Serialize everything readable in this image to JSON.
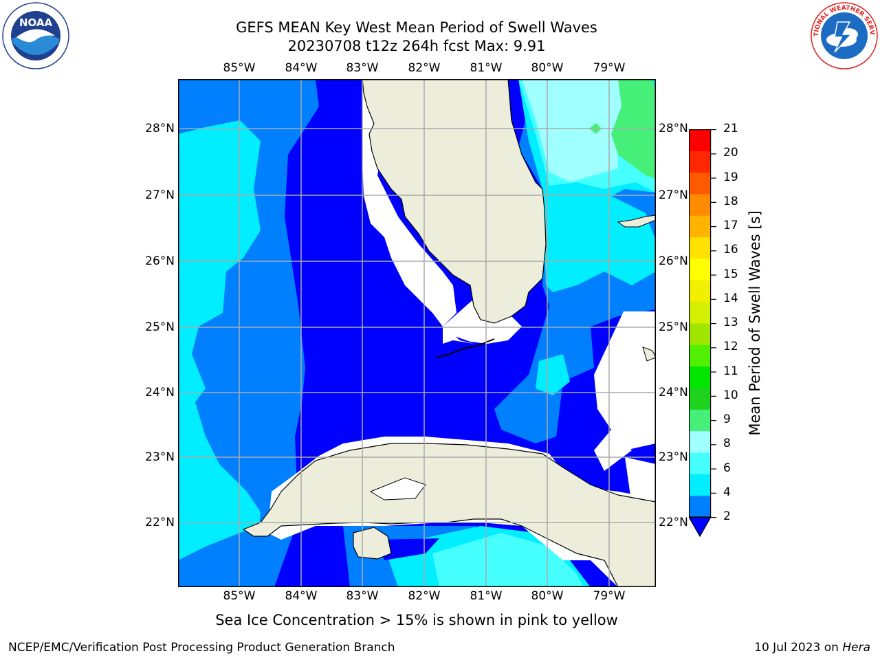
{
  "title": {
    "line1": "GEFS MEAN Key West Mean Period of Swell Waves",
    "line2": "20230708 t12z 264h fcst   Max: 9.91"
  },
  "logos": {
    "left": {
      "name": "noaa-logo",
      "text": "NOAA",
      "colors": [
        "#1f3f8f",
        "#2a8ad6",
        "#ffffff"
      ]
    },
    "right": {
      "name": "national-weather-service-logo",
      "text": "NATIONAL WEATHER SERVICE",
      "colors": [
        "#e0201e",
        "#1c6cc4",
        "#ffffff"
      ]
    }
  },
  "axes": {
    "longitude_ticks": [
      "85°W",
      "84°W",
      "83°W",
      "82°W",
      "81°W",
      "80°W",
      "79°W"
    ],
    "latitude_ticks": [
      "28°N",
      "27°N",
      "26°N",
      "25°N",
      "24°N",
      "23°N",
      "22°N"
    ],
    "lon_range": [
      -86,
      -78.3
    ],
    "lat_range": [
      21,
      28.8
    ]
  },
  "map_colors": {
    "land": "#ededdc",
    "no_data": "#ffffff",
    "coast": "#000000",
    "grid": "#aaaaaa"
  },
  "colorbar": {
    "label": "Mean Period of Swell Waves [s]",
    "ticks": [
      "21",
      "20",
      "19",
      "18",
      "17",
      "16",
      "15",
      "14",
      "13",
      "12",
      "11",
      "10",
      "9",
      "8",
      "6",
      "4",
      "2"
    ],
    "colors_bottom_to_top": [
      "#0080ff",
      "#00eeff",
      "#46ffff",
      "#a0ffff",
      "#46f078",
      "#1ed21e",
      "#00e600",
      "#50f000",
      "#a0e600",
      "#d2f000",
      "#f0f000",
      "#ffff00",
      "#ffe100",
      "#ffb400",
      "#ff8c00",
      "#ff5a00",
      "#ff2800",
      "#ff0000"
    ],
    "under_color": "#0000ff"
  },
  "legend_note": "Sea Ice Concentration > 15% is shown in pink to yellow",
  "footer": {
    "left": "NCEP/EMC/Verification Post Processing Product Generation Branch",
    "right_date": "10 Jul 2023 on ",
    "right_host": "Hera"
  }
}
